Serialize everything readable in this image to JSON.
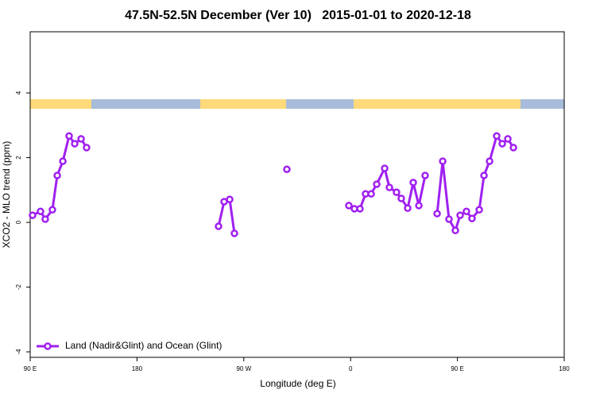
{
  "chart_data": {
    "type": "line",
    "title": "47.5N-52.5N December (Ver 10)   2015-01-01 to 2020-12-18",
    "xlabel": "Longitude (deg E)",
    "ylabel": "XCO2 - MLO trend (ppm)",
    "xlim": [
      90,
      540
    ],
    "xticks": [
      {
        "value": 90,
        "label": "90 E"
      },
      {
        "value": 180,
        "label": "180"
      },
      {
        "value": 270,
        "label": "90 W"
      },
      {
        "value": 360,
        "label": "0"
      },
      {
        "value": 450,
        "label": "90 E"
      },
      {
        "value": 540,
        "label": "180"
      }
    ],
    "ylim": [
      -4.17,
      5.89
    ],
    "yticks": [
      -4,
      -2,
      0,
      2,
      4
    ],
    "legend": "bottom-left",
    "series": [
      {
        "name": "Land (Nadir&Glint) and Ocean (Glint)",
        "color": "#a020f0",
        "x": [
          92,
          98.7,
          102.7,
          108.7,
          112.8,
          117.5,
          122.8,
          127.5,
          132.9,
          137.5,
          null,
          248.7,
          253.4,
          258.1,
          262.1,
          null,
          306.3,
          null,
          358.5,
          363.2,
          367.9,
          372.6,
          377.3,
          382.0,
          388.7,
          392.7,
          398.7,
          402.7,
          408.1,
          412.8,
          417.5,
          422.8,
          null,
          432.9,
          437.6,
          442.9,
          448.3,
          452.3,
          457.6,
          462.3,
          468.4,
          472.4,
          477.1,
          483.1,
          487.8,
          492.5,
          497.2
        ],
        "values": [
          0.22,
          0.34,
          0.1,
          0.39,
          1.45,
          1.89,
          2.67,
          2.43,
          2.58,
          2.31,
          null,
          -0.12,
          0.64,
          0.71,
          -0.34,
          null,
          1.64,
          null,
          0.52,
          0.42,
          0.42,
          0.88,
          0.88,
          1.18,
          1.67,
          1.08,
          0.93,
          0.74,
          0.44,
          1.23,
          0.52,
          1.45,
          null,
          0.27,
          1.89,
          0.1,
          -0.25,
          0.22,
          0.34,
          0.12,
          0.39,
          1.45,
          1.89,
          2.67,
          2.43,
          2.58,
          2.31
        ]
      }
    ]
  }
}
